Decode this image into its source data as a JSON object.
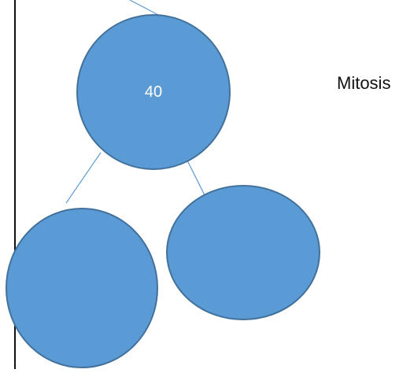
{
  "diagram": {
    "parent_cell": {
      "label": "40"
    },
    "caption": "Mitosis",
    "colors": {
      "cell_fill": "#5B9BD5",
      "cell_stroke": "#41719C",
      "connector": "#5B9BD5",
      "border_line": "#111111",
      "cell_text": "#ffffff"
    }
  }
}
